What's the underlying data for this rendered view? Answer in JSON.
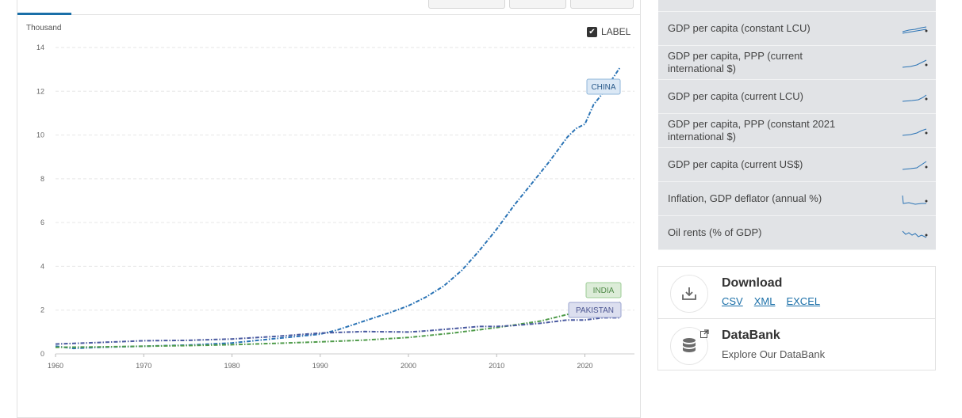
{
  "chart": {
    "unit_label": "Thousand",
    "label_toggle": "LABEL",
    "label_checked": true,
    "series_labels": {
      "china": "CHINA",
      "india": "INDIA",
      "pakistan": "PAKISTAN"
    }
  },
  "chart_data": {
    "type": "line",
    "ylabel": "Thousand",
    "ylim": [
      0,
      14
    ],
    "yticks": [
      0,
      2,
      4,
      6,
      8,
      10,
      12,
      14
    ],
    "xlim": [
      1960,
      2024
    ],
    "xticks": [
      1960,
      1970,
      1980,
      1990,
      2000,
      2010,
      2020
    ],
    "grid": true,
    "series": [
      {
        "name": "CHINA",
        "color": "#2a73b5",
        "x": [
          1960,
          1962,
          1965,
          1970,
          1975,
          1980,
          1985,
          1990,
          1992,
          1995,
          1998,
          2000,
          2002,
          2004,
          2006,
          2008,
          2010,
          2012,
          2014,
          2016,
          2018,
          2019,
          2020,
          2021,
          2022,
          2023,
          2024
        ],
        "y": [
          0.35,
          0.25,
          0.3,
          0.35,
          0.4,
          0.5,
          0.7,
          0.9,
          1.1,
          1.5,
          1.9,
          2.2,
          2.6,
          3.1,
          3.8,
          4.7,
          5.7,
          6.8,
          7.8,
          8.8,
          9.9,
          10.3,
          10.5,
          11.4,
          11.9,
          12.5,
          13.1
        ]
      },
      {
        "name": "INDIA",
        "color": "#4f9b4a",
        "x": [
          1960,
          1965,
          1970,
          1975,
          1980,
          1985,
          1990,
          1995,
          2000,
          2005,
          2010,
          2015,
          2018,
          2019,
          2020,
          2021,
          2022,
          2023,
          2024
        ],
        "y": [
          0.3,
          0.32,
          0.35,
          0.38,
          0.42,
          0.48,
          0.55,
          0.63,
          0.75,
          0.95,
          1.2,
          1.5,
          1.8,
          1.9,
          1.8,
          2.0,
          2.1,
          2.2,
          2.35
        ]
      },
      {
        "name": "PAKISTAN",
        "color": "#4a5aa0",
        "x": [
          1960,
          1965,
          1970,
          1975,
          1980,
          1985,
          1990,
          1995,
          2000,
          2002,
          2005,
          2008,
          2010,
          2012,
          2015,
          2018,
          2020,
          2022,
          2024
        ],
        "y": [
          0.45,
          0.52,
          0.6,
          0.62,
          0.68,
          0.8,
          0.95,
          1.02,
          1.0,
          1.05,
          1.15,
          1.25,
          1.25,
          1.3,
          1.4,
          1.55,
          1.55,
          1.65,
          1.65
        ]
      }
    ]
  },
  "sidebar": {
    "items": [
      {
        "label": "GDP per capita (constant LCU)"
      },
      {
        "label": "GDP per capita, PPP (current international $)"
      },
      {
        "label": "GDP per capita (current LCU)"
      },
      {
        "label": "GDP per capita, PPP (constant 2021 international $)"
      },
      {
        "label": "GDP per capita (current US$)"
      },
      {
        "label": "Inflation, GDP deflator (annual %)"
      },
      {
        "label": "Oil rents (% of GDP)"
      }
    ]
  },
  "download": {
    "title": "Download",
    "links": [
      "CSV",
      "XML",
      "EXCEL"
    ]
  },
  "databank": {
    "title": "DataBank",
    "subtitle": "Explore Our DataBank"
  },
  "colors": {
    "accent": "#1a6fa8",
    "sidebar_bg": "#e1e3e6",
    "china_label_bg": "#dbe8f5",
    "india_label_bg": "#dcecd8",
    "pakistan_label_bg": "#dcdfef"
  }
}
